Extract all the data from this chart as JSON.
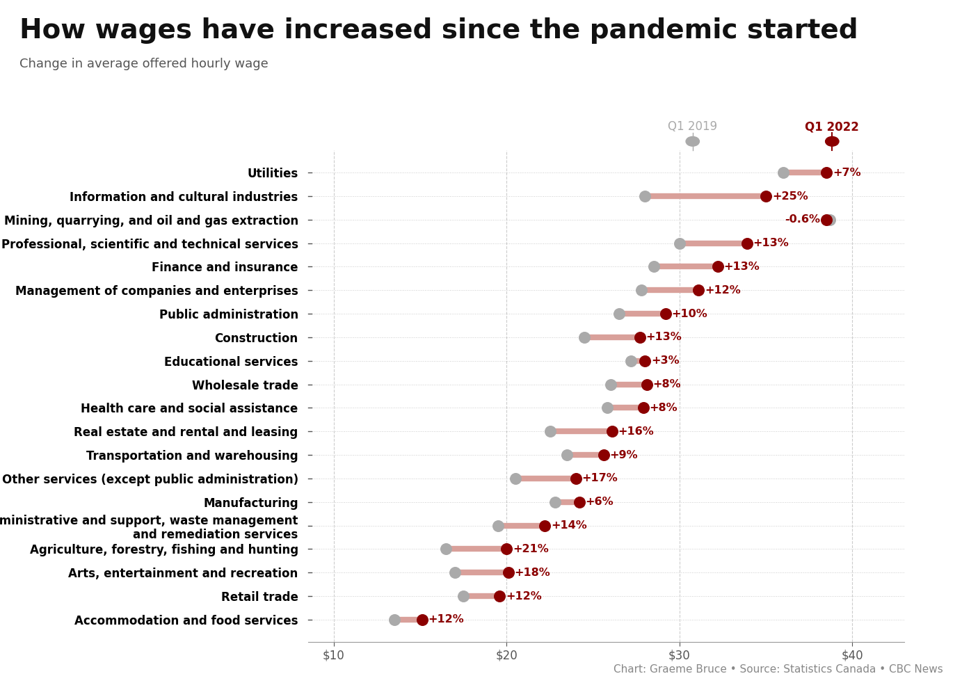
{
  "title": "How wages have increased since the pandemic started",
  "subtitle": "Change in average offered hourly wage",
  "footnote": "Chart: Graeme Bruce • Source: Statistics Canada • CBC News",
  "legend_2019": "Q1 2019",
  "legend_2022": "Q1 2022",
  "color_2019": "#aaaaaa",
  "color_2022": "#8b0000",
  "connector_color": "#d9a09a",
  "background_color": "#ffffff",
  "xlim": [
    8.5,
    43
  ],
  "xticks": [
    10,
    20,
    30,
    40
  ],
  "industries": [
    "Utilities",
    "Information and cultural industries",
    "Mining, quarrying, and oil and gas extraction",
    "Professional, scientific and technical services",
    "Finance and insurance",
    "Management of companies and enterprises",
    "Public administration",
    "Construction",
    "Educational services",
    "Wholesale trade",
    "Health care and social assistance",
    "Real estate and rental and leasing",
    "Transportation and warehousing",
    "Other services (except public administration)",
    "Manufacturing",
    "Administrative and support, waste management\nand remediation services",
    "Agriculture, forestry, fishing and hunting",
    "Arts, entertainment and recreation",
    "Retail trade",
    "Accommodation and food services"
  ],
  "q1_2019": [
    36.0,
    28.0,
    38.7,
    30.0,
    28.5,
    27.8,
    26.5,
    24.5,
    27.2,
    26.0,
    25.8,
    22.5,
    23.5,
    20.5,
    22.8,
    19.5,
    16.5,
    17.0,
    17.5,
    13.5
  ],
  "q1_2022": [
    38.5,
    35.0,
    38.5,
    33.9,
    32.2,
    31.1,
    29.2,
    27.7,
    28.0,
    28.1,
    27.9,
    26.1,
    25.6,
    24.0,
    24.2,
    22.2,
    20.0,
    20.1,
    19.6,
    15.1
  ],
  "pct_labels": [
    "+7%",
    "+25%",
    "-0.6%",
    "+13%",
    "+13%",
    "+12%",
    "+10%",
    "+13%",
    "+3%",
    "+8%",
    "+8%",
    "+16%",
    "+9%",
    "+17%",
    "+6%",
    "+14%",
    "+21%",
    "+18%",
    "+12%",
    "+12%"
  ],
  "title_fontsize": 28,
  "subtitle_fontsize": 13,
  "label_fontsize": 12,
  "tick_fontsize": 12,
  "pct_fontsize": 11.5,
  "legend_fontsize": 12,
  "footnote_fontsize": 11
}
